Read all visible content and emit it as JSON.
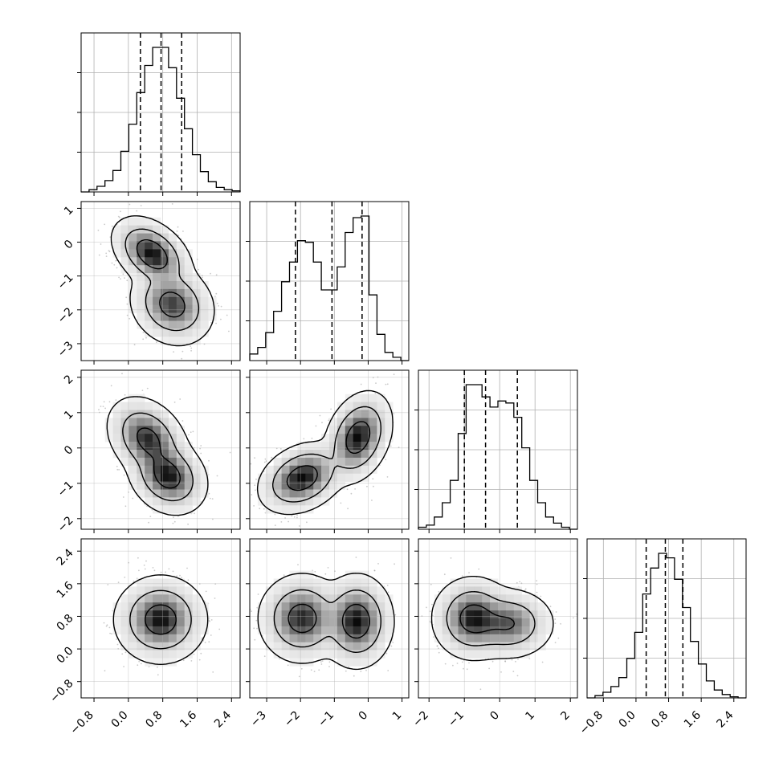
{
  "chart_data": {
    "type": "corner",
    "title": "",
    "variables": [
      {
        "ticks": [
          -0.8,
          0.0,
          0.8,
          1.6,
          2.4
        ],
        "tick_labels": [
          "−0.8",
          "0.0",
          "0.8",
          "1.6",
          "2.4"
        ],
        "range": [
          -1.1,
          2.6
        ]
      },
      {
        "ticks": [
          -3,
          -2,
          -1,
          0,
          1
        ],
        "tick_labels": [
          "−3",
          "−2",
          "−1",
          "0",
          "1"
        ],
        "range": [
          -3.5,
          1.2
        ]
      },
      {
        "ticks": [
          -2,
          -1,
          0,
          1,
          2
        ],
        "tick_labels": [
          "−2",
          "−1",
          "0",
          "1",
          "2"
        ],
        "range": [
          -2.3,
          2.2
        ]
      },
      {
        "ticks": [
          -0.8,
          0.0,
          0.8,
          1.6,
          2.4
        ],
        "tick_labels": [
          "−0.8",
          "0.0",
          "0.8",
          "1.6",
          "2.4"
        ],
        "range": [
          -1.2,
          2.7
        ]
      }
    ],
    "histograms": [
      {
        "bins": [
          -1.1,
          -0.915,
          -0.73,
          -0.545,
          -0.36,
          -0.175,
          0.01,
          0.195,
          0.38,
          0.565,
          0.75,
          0.935,
          1.12,
          1.305,
          1.49,
          1.675,
          1.86,
          2.045,
          2.23,
          2.415,
          2.6
        ],
        "counts": [
          0,
          2,
          5,
          10,
          19,
          36,
          60,
          88,
          112,
          128,
          128,
          110,
          83,
          56,
          33,
          18,
          9,
          4,
          2,
          1
        ],
        "quantiles": [
          0.28,
          0.76,
          1.24
        ]
      },
      {
        "bins": [
          -3.5,
          -3.265,
          -3.03,
          -2.795,
          -2.56,
          -2.325,
          -2.09,
          -1.855,
          -1.62,
          -1.385,
          -1.15,
          -0.915,
          -0.68,
          -0.445,
          -0.21,
          0.025,
          0.26,
          0.495,
          0.73,
          0.965,
          1.2
        ],
        "counts": [
          4,
          8,
          17,
          30,
          48,
          60,
          73,
          72,
          60,
          43,
          43,
          57,
          78,
          87,
          88,
          40,
          16,
          5,
          2,
          0
        ],
        "quantiles": [
          -2.15,
          -1.07,
          -0.18
        ]
      },
      {
        "bins": [
          -2.3,
          -2.075,
          -1.85,
          -1.625,
          -1.4,
          -1.175,
          -0.95,
          -0.725,
          -0.5,
          -0.275,
          -0.05,
          0.175,
          0.4,
          0.625,
          0.85,
          1.075,
          1.3,
          1.525,
          1.75,
          1.975,
          2.2
        ],
        "counts": [
          1,
          2,
          6,
          13,
          24,
          47,
          71,
          71,
          65,
          60,
          63,
          62,
          55,
          40,
          24,
          13,
          6,
          3,
          1,
          0
        ],
        "quantiles": [
          -1.0,
          -0.4,
          0.5
        ]
      },
      {
        "bins": [
          -1.2,
          -1.005,
          -0.81,
          -0.615,
          -0.42,
          -0.225,
          -0.03,
          0.165,
          0.36,
          0.555,
          0.75,
          0.945,
          1.14,
          1.335,
          1.53,
          1.725,
          1.92,
          2.115,
          2.31,
          2.505,
          2.7
        ],
        "counts": [
          0,
          2,
          5,
          10,
          18,
          35,
          58,
          92,
          115,
          128,
          124,
          105,
          80,
          50,
          30,
          15,
          7,
          3,
          1,
          0
        ],
        "quantiles": [
          0.25,
          0.72,
          1.15
        ]
      }
    ],
    "pairs": [
      {
        "x": 0,
        "y": 1,
        "modes": [
          {
            "cx": 0.55,
            "cy": -0.35,
            "sx": 0.32,
            "sy": 0.38,
            "rho": -0.4,
            "w": 0.5
          },
          {
            "cx": 1.02,
            "cy": -1.85,
            "sx": 0.34,
            "sy": 0.42,
            "rho": -0.15,
            "w": 0.5
          }
        ]
      },
      {
        "x": 0,
        "y": 2,
        "modes": [
          {
            "cx": 0.45,
            "cy": 0.25,
            "sx": 0.33,
            "sy": 0.42,
            "rho": -0.3,
            "w": 0.5
          },
          {
            "cx": 0.92,
            "cy": -0.8,
            "sx": 0.32,
            "sy": 0.38,
            "rho": -0.2,
            "w": 0.5
          }
        ]
      },
      {
        "x": 1,
        "y": 2,
        "modes": [
          {
            "cx": -1.95,
            "cy": -0.85,
            "sx": 0.45,
            "sy": 0.35,
            "rho": 0.3,
            "w": 0.5
          },
          {
            "cx": -0.3,
            "cy": 0.3,
            "sx": 0.35,
            "sy": 0.45,
            "rho": 0.3,
            "w": 0.5
          }
        ]
      },
      {
        "x": 0,
        "y": 3,
        "modes": [
          {
            "cx": 0.75,
            "cy": 0.72,
            "sx": 0.36,
            "sy": 0.36,
            "rho": 0.0,
            "w": 1.0
          }
        ]
      },
      {
        "x": 1,
        "y": 3,
        "modes": [
          {
            "cx": -1.95,
            "cy": 0.75,
            "sx": 0.45,
            "sy": 0.38,
            "rho": 0.0,
            "w": 0.5
          },
          {
            "cx": -0.35,
            "cy": 0.68,
            "sx": 0.38,
            "sy": 0.4,
            "rho": 0.0,
            "w": 0.5
          }
        ]
      },
      {
        "x": 2,
        "y": 3,
        "modes": [
          {
            "cx": -0.75,
            "cy": 0.75,
            "sx": 0.4,
            "sy": 0.35,
            "rho": 0.0,
            "w": 0.6
          },
          {
            "cx": 0.25,
            "cy": 0.62,
            "sx": 0.45,
            "sy": 0.3,
            "rho": 0.0,
            "w": 0.4
          }
        ]
      }
    ],
    "contour_levels": [
      0.39,
      0.86,
      0.99
    ],
    "grid": true,
    "colors": {
      "line": "#000000",
      "grid": "#b0b0b0",
      "points": "#9e9e9e",
      "hist_fill": "#4d4d4d"
    }
  }
}
